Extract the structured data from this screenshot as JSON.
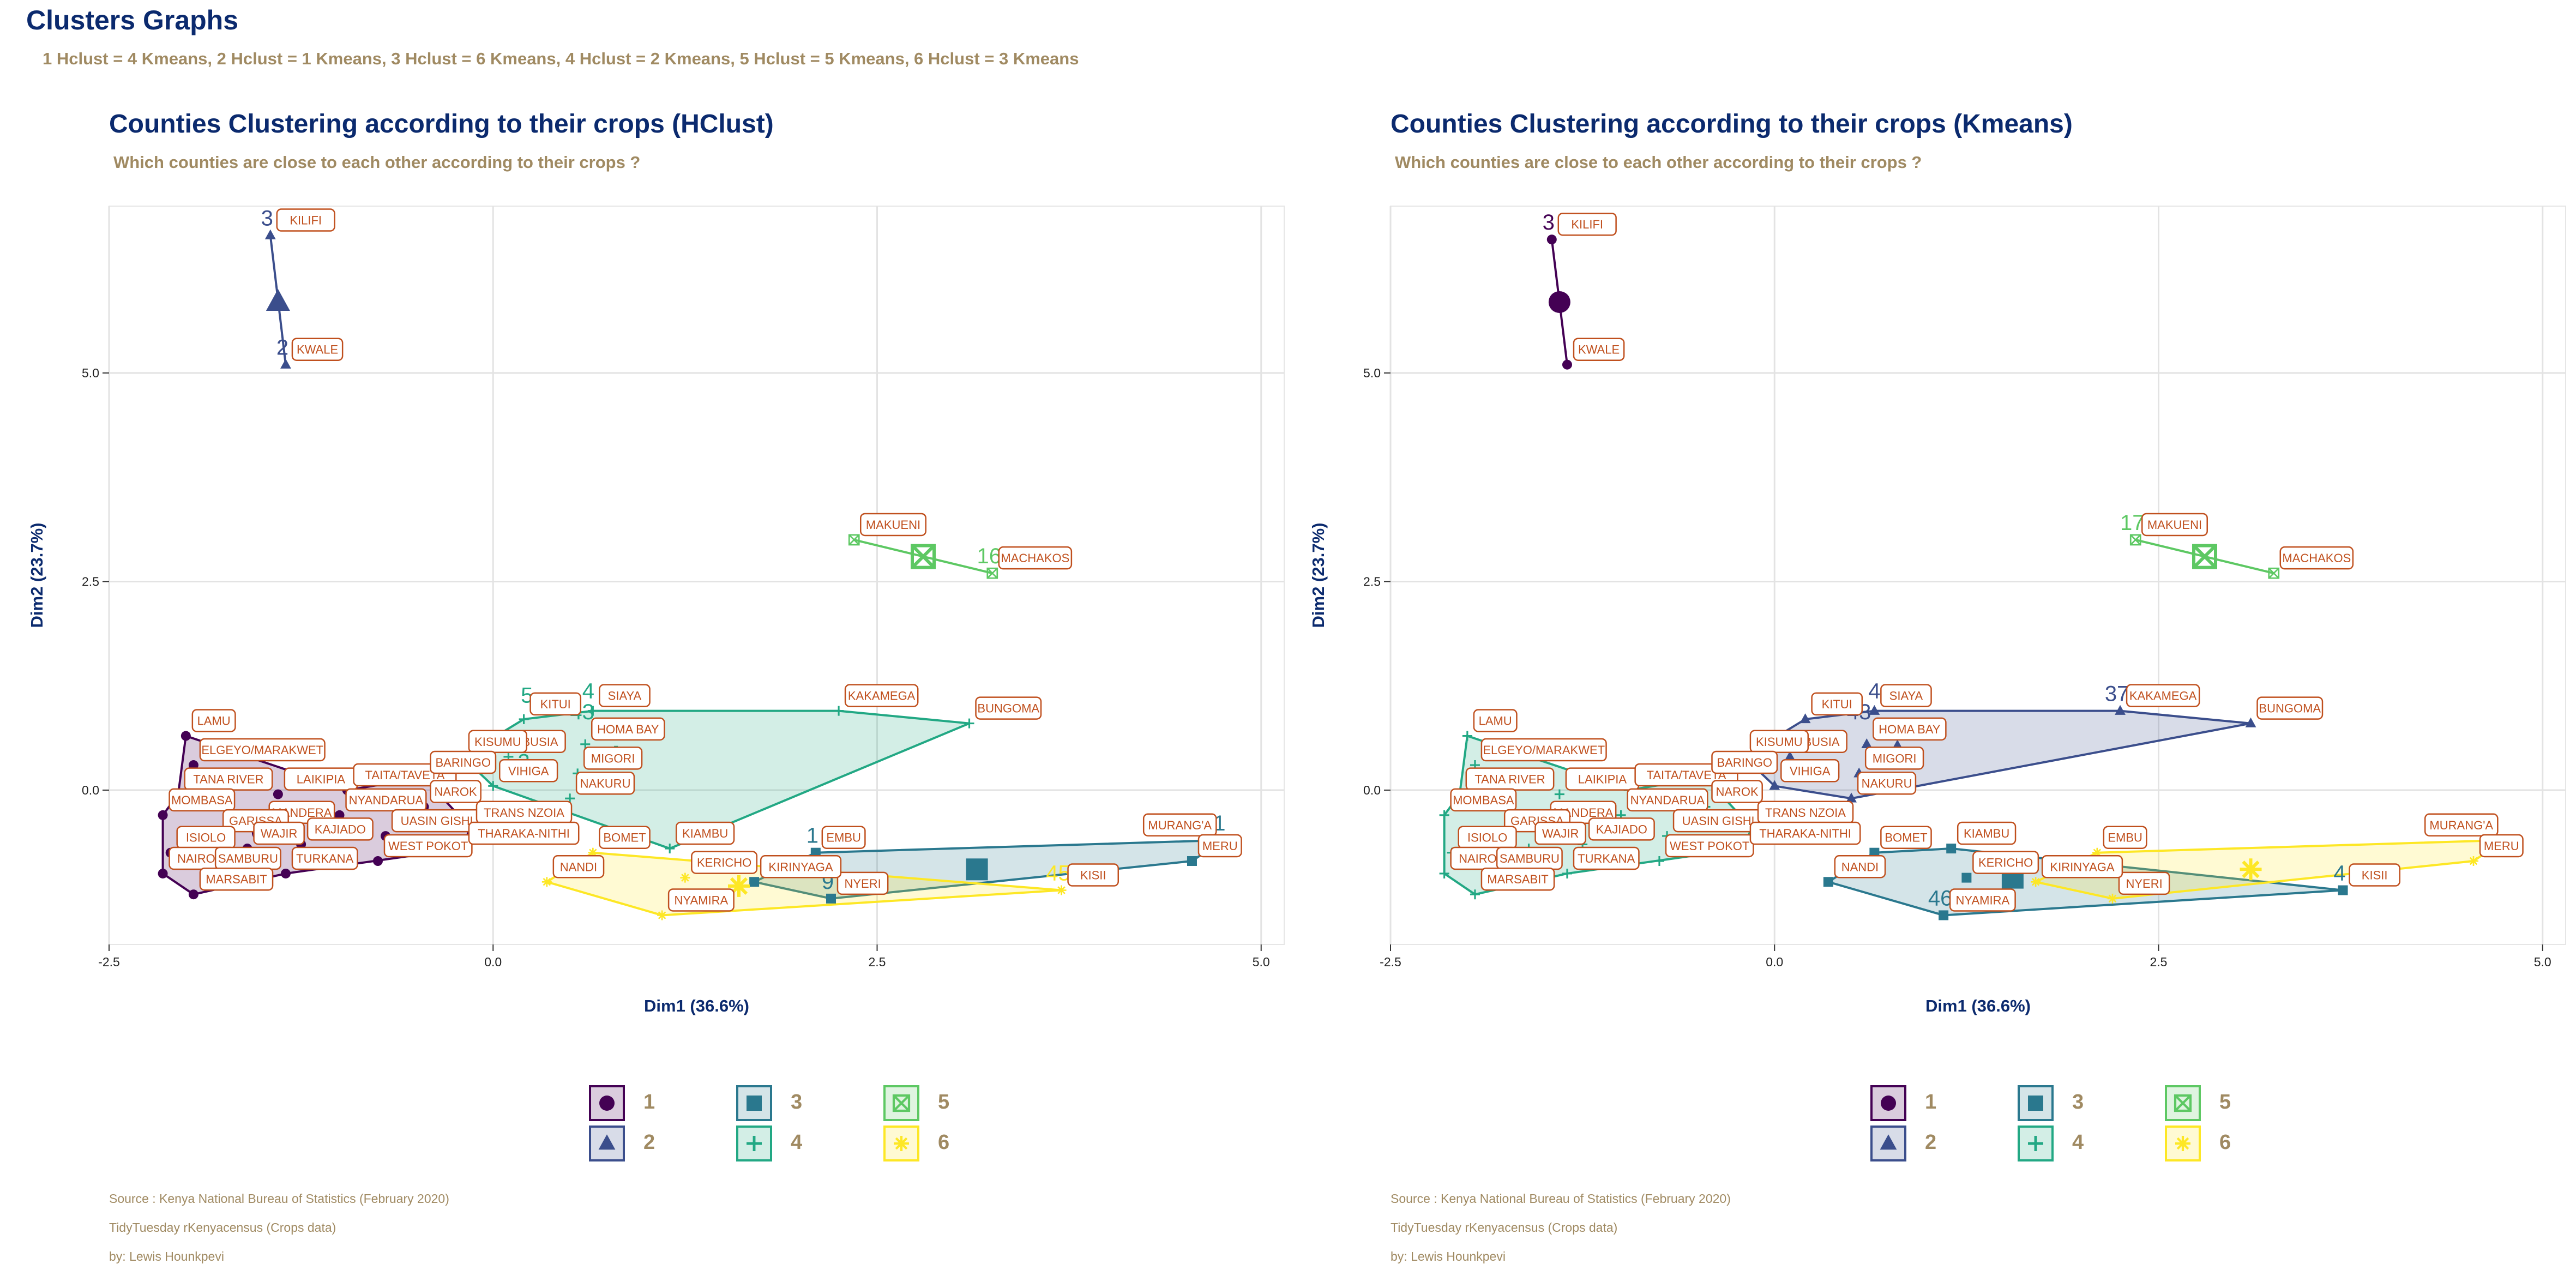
{
  "title": "Clusters Graphs",
  "subtitle": "1 Hclust = 4 Kmeans, 2 Hclust = 1 Kmeans, 3 Hclust = 6 Kmeans, 4 Hclust = 2 Kmeans, 5 Hclust = 5 Kmeans, 6 Hclust = 3 Kmeans",
  "cluster_colors": {
    "1": "#440154",
    "2": "#3b4e8c",
    "3": "#2a788e",
    "4": "#22a884",
    "5": "#5dc863",
    "6": "#fde725"
  },
  "cluster_shapes": {
    "1": "circle",
    "2": "triangle",
    "3": "square",
    "4": "plus",
    "5": "square-cross",
    "6": "asterisk"
  },
  "chart_data": [
    {
      "type": "scatter",
      "title": "Counties Clustering according to their crops (HClust)",
      "subtitle": "Which counties are close to each other according to their crops ?",
      "xlabel": "Dim1 (36.6%)",
      "ylabel": "Dim2 (23.7%)",
      "xlim": [
        -2.5,
        5.15
      ],
      "ylim": [
        -1.85,
        7.0
      ],
      "x_ticks": [
        "-2.5",
        "0.0",
        "2.5",
        "5.0"
      ],
      "y_ticks": [
        "0.0",
        "2.5",
        "5.0"
      ],
      "grid": true,
      "legend": {
        "position": "bottom",
        "labels": [
          "1",
          "2",
          "3",
          "4",
          "5",
          "6"
        ]
      },
      "points": [
        {
          "label": "KILIFI",
          "cluster": 2,
          "x": -1.45,
          "y": 6.65,
          "num": "3"
        },
        {
          "label": "KWALE",
          "cluster": 2,
          "x": -1.35,
          "y": 5.1,
          "num": "2"
        },
        {
          "label": "MAKUENI",
          "cluster": 5,
          "x": 2.35,
          "y": 3.0
        },
        {
          "label": "MACHAKOS",
          "cluster": 5,
          "x": 3.25,
          "y": 2.6,
          "num": "16"
        },
        {
          "label": "KAKAMEGA",
          "cluster": 4,
          "x": 2.25,
          "y": 0.95
        },
        {
          "label": "BUNGOMA",
          "cluster": 4,
          "x": 3.1,
          "y": 0.8
        },
        {
          "label": "SIAYA",
          "cluster": 4,
          "x": 0.65,
          "y": 0.95
        },
        {
          "label": "KITUI",
          "cluster": 4,
          "x": 0.2,
          "y": 0.85
        },
        {
          "label": "HOMA BAY",
          "cluster": 4,
          "x": 0.6,
          "y": 0.55
        },
        {
          "label": "BUSIA",
          "cluster": 4,
          "x": 0.1,
          "y": 0.4
        },
        {
          "label": "MIGORI",
          "cluster": 4,
          "x": 0.55,
          "y": 0.2
        },
        {
          "label": "VIHIGA",
          "cluster": 4,
          "x": 0.0,
          "y": 0.05
        },
        {
          "label": "NAKURU",
          "cluster": 4,
          "x": 0.5,
          "y": -0.1
        },
        {
          "label": "KIAMBU",
          "cluster": 4,
          "x": 1.15,
          "y": -0.7
        },
        {
          "label": "KISUMU",
          "cluster": 4,
          "x": -0.2,
          "y": 0.4
        },
        {
          "label": "LAMU",
          "cluster": 1,
          "x": -2.0,
          "y": 0.65
        },
        {
          "label": "ELGEYO/MARAKWET",
          "cluster": 1,
          "x": -1.95,
          "y": 0.3
        },
        {
          "label": "TANA RIVER",
          "cluster": 1,
          "x": -2.05,
          "y": -0.05
        },
        {
          "label": "MOMBASA",
          "cluster": 1,
          "x": -2.15,
          "y": -0.3
        },
        {
          "label": "LAIKIPIA",
          "cluster": 1,
          "x": -1.4,
          "y": -0.05
        },
        {
          "label": "TAITA/TAVETA",
          "cluster": 1,
          "x": -0.95,
          "y": 0.0
        },
        {
          "label": "MANDERA",
          "cluster": 1,
          "x": -1.5,
          "y": -0.45
        },
        {
          "label": "GARISSA",
          "cluster": 1,
          "x": -1.8,
          "y": -0.55
        },
        {
          "label": "NYANDARUA",
          "cluster": 1,
          "x": -1.0,
          "y": -0.3
        },
        {
          "label": "KAJIADO",
          "cluster": 1,
          "x": -1.25,
          "y": -0.65
        },
        {
          "label": "WAJIR",
          "cluster": 1,
          "x": -1.6,
          "y": -0.7
        },
        {
          "label": "ISIOLO",
          "cluster": 1,
          "x": -2.1,
          "y": -0.75
        },
        {
          "label": "NAIROBI",
          "cluster": 1,
          "x": -2.15,
          "y": -1.0
        },
        {
          "label": "SAMBURU",
          "cluster": 1,
          "x": -1.85,
          "y": -1.0
        },
        {
          "label": "TURKANA",
          "cluster": 1,
          "x": -1.35,
          "y": -1.0
        },
        {
          "label": "MARSABIT",
          "cluster": 1,
          "x": -1.95,
          "y": -1.25
        },
        {
          "label": "WEST POKOT",
          "cluster": 1,
          "x": -0.75,
          "y": -0.85
        },
        {
          "label": "UASIN GISHU",
          "cluster": 1,
          "x": -0.7,
          "y": -0.55
        },
        {
          "label": "BARINGO",
          "cluster": 1,
          "x": -0.45,
          "y": 0.15
        },
        {
          "label": "NAROK",
          "cluster": 1,
          "x": -0.45,
          "y": -0.2
        },
        {
          "label": "TRANS NZOIA",
          "cluster": 1,
          "x": -0.15,
          "y": -0.45
        },
        {
          "label": "THARAKA-NITHI",
          "cluster": 1,
          "x": -0.2,
          "y": -0.7
        },
        {
          "label": "EMBU",
          "cluster": 3,
          "x": 2.1,
          "y": -0.75,
          "num": "1"
        },
        {
          "label": "MURANG'A",
          "cluster": 3,
          "x": 4.75,
          "y": -0.6,
          "num": "1"
        },
        {
          "label": "MERU",
          "cluster": 3,
          "x": 4.55,
          "y": -0.85
        },
        {
          "label": "NYERI",
          "cluster": 3,
          "x": 2.2,
          "y": -1.3,
          "num": "9"
        },
        {
          "label": "KIRINYAGA",
          "cluster": 3,
          "x": 1.7,
          "y": -1.1
        },
        {
          "label": "BOMET",
          "cluster": 6,
          "x": 0.65,
          "y": -0.75
        },
        {
          "label": "KERICHO",
          "cluster": 6,
          "x": 1.25,
          "y": -1.05
        },
        {
          "label": "NANDI",
          "cluster": 6,
          "x": 0.35,
          "y": -1.1
        },
        {
          "label": "NYAMIRA",
          "cluster": 6,
          "x": 1.1,
          "y": -1.5
        },
        {
          "label": "KISII",
          "cluster": 6,
          "x": 3.7,
          "y": -1.2,
          "num": "45"
        }
      ],
      "centroids": [
        {
          "cluster": 1,
          "x": -1.5,
          "y": -0.5
        },
        {
          "cluster": 2,
          "x": -1.4,
          "y": 5.85
        },
        {
          "cluster": 3,
          "x": 3.15,
          "y": -0.95
        },
        {
          "cluster": 4,
          "x": 0.8,
          "y": 0.4
        },
        {
          "cluster": 5,
          "x": 2.8,
          "y": 2.8
        },
        {
          "cluster": 6,
          "x": 1.6,
          "y": -1.15
        }
      ],
      "hull_order": {
        "1": [
          "LAMU",
          "TAITA/TAVETA",
          "BARINGO",
          "TRANS NZOIA",
          "THARAKA-NITHI",
          "TURKANA",
          "MARSABIT",
          "NAIROBI",
          "MOMBASA",
          "TANA RIVER"
        ],
        "2": [
          "KILIFI",
          "KWALE"
        ],
        "3": [
          "EMBU",
          "MURANG'A",
          "MERU",
          "NYERI",
          "KIRINYAGA"
        ],
        "4": [
          "SIAYA",
          "KAKAMEGA",
          "BUNGOMA",
          "KIAMBU",
          "VIHIGA",
          "KISUMU",
          "KITUI"
        ],
        "5": [
          "MAKUENI",
          "MACHAKOS"
        ],
        "6": [
          "BOMET",
          "KISII",
          "NYAMIRA",
          "NANDI"
        ]
      },
      "annotations": [
        {
          "text": "5",
          "x": 0.22,
          "y": 1.05,
          "cluster": 4
        },
        {
          "text": "4",
          "x": 0.62,
          "y": 1.1,
          "cluster": 4
        },
        {
          "text": "43",
          "x": 0.58,
          "y": 0.85,
          "cluster": 4
        },
        {
          "text": "3",
          "x": 0.2,
          "y": 0.25,
          "cluster": 4
        }
      ]
    },
    {
      "type": "scatter",
      "title": "Counties Clustering according to their crops (Kmeans)",
      "subtitle": "Which counties are close to each other according to their crops ?",
      "xlabel": "Dim1 (36.6%)",
      "ylabel": "Dim2 (23.7%)",
      "xlim": [
        -2.5,
        5.15
      ],
      "ylim": [
        -1.85,
        7.0
      ],
      "x_ticks": [
        "-2.5",
        "0.0",
        "2.5",
        "5.0"
      ],
      "y_ticks": [
        "0.0",
        "2.5",
        "5.0"
      ],
      "grid": true,
      "legend": {
        "position": "bottom",
        "labels": [
          "1",
          "2",
          "3",
          "4",
          "5",
          "6"
        ]
      },
      "points": [
        {
          "label": "KILIFI",
          "cluster": 1,
          "x": -1.45,
          "y": 6.6,
          "num": "3"
        },
        {
          "label": "KWALE",
          "cluster": 1,
          "x": -1.35,
          "y": 5.1
        },
        {
          "label": "MAKUENI",
          "cluster": 5,
          "x": 2.35,
          "y": 3.0,
          "num": "17"
        },
        {
          "label": "MACHAKOS",
          "cluster": 5,
          "x": 3.25,
          "y": 2.6
        },
        {
          "label": "KAKAMEGA",
          "cluster": 2,
          "x": 2.25,
          "y": 0.95,
          "num": "37"
        },
        {
          "label": "BUNGOMA",
          "cluster": 2,
          "x": 3.1,
          "y": 0.8
        },
        {
          "label": "SIAYA",
          "cluster": 2,
          "x": 0.65,
          "y": 0.95
        },
        {
          "label": "KITUI",
          "cluster": 2,
          "x": 0.2,
          "y": 0.85
        },
        {
          "label": "HOMA BAY",
          "cluster": 2,
          "x": 0.6,
          "y": 0.55
        },
        {
          "label": "BUSIA",
          "cluster": 2,
          "x": 0.1,
          "y": 0.4
        },
        {
          "label": "MIGORI",
          "cluster": 2,
          "x": 0.55,
          "y": 0.2
        },
        {
          "label": "VIHIGA",
          "cluster": 2,
          "x": 0.0,
          "y": 0.05
        },
        {
          "label": "NAKURU",
          "cluster": 2,
          "x": 0.5,
          "y": -0.1
        },
        {
          "label": "KISUMU",
          "cluster": 2,
          "x": -0.2,
          "y": 0.4
        },
        {
          "label": "LAMU",
          "cluster": 4,
          "x": -2.0,
          "y": 0.65
        },
        {
          "label": "ELGEYO/MARAKWET",
          "cluster": 4,
          "x": -1.95,
          "y": 0.3
        },
        {
          "label": "TANA RIVER",
          "cluster": 4,
          "x": -2.05,
          "y": -0.05
        },
        {
          "label": "MOMBASA",
          "cluster": 4,
          "x": -2.15,
          "y": -0.3
        },
        {
          "label": "LAIKIPIA",
          "cluster": 4,
          "x": -1.4,
          "y": -0.05
        },
        {
          "label": "TAITA/TAVETA",
          "cluster": 4,
          "x": -0.95,
          "y": 0.0
        },
        {
          "label": "MANDERA",
          "cluster": 4,
          "x": -1.5,
          "y": -0.45
        },
        {
          "label": "GARISSA",
          "cluster": 4,
          "x": -1.8,
          "y": -0.55
        },
        {
          "label": "NYANDARUA",
          "cluster": 4,
          "x": -1.0,
          "y": -0.3
        },
        {
          "label": "KAJIADO",
          "cluster": 4,
          "x": -1.25,
          "y": -0.65
        },
        {
          "label": "WAJIR",
          "cluster": 4,
          "x": -1.6,
          "y": -0.7
        },
        {
          "label": "ISIOLO",
          "cluster": 4,
          "x": -2.1,
          "y": -0.75
        },
        {
          "label": "NAIROBI",
          "cluster": 4,
          "x": -2.15,
          "y": -1.0
        },
        {
          "label": "SAMBURU",
          "cluster": 4,
          "x": -1.85,
          "y": -1.0
        },
        {
          "label": "TURKANA",
          "cluster": 4,
          "x": -1.35,
          "y": -1.0
        },
        {
          "label": "MARSABIT",
          "cluster": 4,
          "x": -1.95,
          "y": -1.25
        },
        {
          "label": "WEST POKOT",
          "cluster": 4,
          "x": -0.75,
          "y": -0.85
        },
        {
          "label": "UASIN GISHU",
          "cluster": 4,
          "x": -0.7,
          "y": -0.55
        },
        {
          "label": "BARINGO",
          "cluster": 4,
          "x": -0.45,
          "y": 0.15
        },
        {
          "label": "NAROK",
          "cluster": 4,
          "x": -0.45,
          "y": -0.2
        },
        {
          "label": "TRANS NZOIA",
          "cluster": 4,
          "x": -0.15,
          "y": -0.45
        },
        {
          "label": "THARAKA-NITHI",
          "cluster": 4,
          "x": -0.2,
          "y": -0.7
        },
        {
          "label": "KIAMBU",
          "cluster": 3,
          "x": 1.15,
          "y": -0.7
        },
        {
          "label": "BOMET",
          "cluster": 3,
          "x": 0.65,
          "y": -0.75
        },
        {
          "label": "KERICHO",
          "cluster": 3,
          "x": 1.25,
          "y": -1.05
        },
        {
          "label": "NANDI",
          "cluster": 3,
          "x": 0.35,
          "y": -1.1
        },
        {
          "label": "NYAMIRA",
          "cluster": 3,
          "x": 1.1,
          "y": -1.5,
          "num": "46"
        },
        {
          "label": "KISII",
          "cluster": 3,
          "x": 3.7,
          "y": -1.2,
          "num": "4"
        },
        {
          "label": "EMBU",
          "cluster": 6,
          "x": 2.1,
          "y": -0.75
        },
        {
          "label": "MURANG'A",
          "cluster": 6,
          "x": 4.75,
          "y": -0.6
        },
        {
          "label": "MERU",
          "cluster": 6,
          "x": 4.55,
          "y": -0.85
        },
        {
          "label": "NYERI",
          "cluster": 6,
          "x": 2.2,
          "y": -1.3
        },
        {
          "label": "KIRINYAGA",
          "cluster": 6,
          "x": 1.7,
          "y": -1.1
        }
      ],
      "centroids": [
        {
          "cluster": 1,
          "x": -1.4,
          "y": 5.85
        },
        {
          "cluster": 2,
          "x": 0.8,
          "y": 0.45
        },
        {
          "cluster": 3,
          "x": 1.55,
          "y": -1.05
        },
        {
          "cluster": 4,
          "x": -1.3,
          "y": -0.35
        },
        {
          "cluster": 5,
          "x": 2.8,
          "y": 2.8
        },
        {
          "cluster": 6,
          "x": 3.1,
          "y": -0.95
        }
      ],
      "hull_order": {
        "1": [
          "KILIFI",
          "KWALE"
        ],
        "2": [
          "SIAYA",
          "KAKAMEGA",
          "BUNGOMA",
          "NAKURU",
          "VIHIGA",
          "KISUMU",
          "KITUI"
        ],
        "3": [
          "BOMET",
          "KIAMBU",
          "KISII",
          "NYAMIRA",
          "NANDI"
        ],
        "4": [
          "LAMU",
          "TAITA/TAVETA",
          "BARINGO",
          "TRANS NZOIA",
          "THARAKA-NITHI",
          "TURKANA",
          "MARSABIT",
          "NAIROBI",
          "MOMBASA",
          "TANA RIVER"
        ],
        "5": [
          "MAKUENI",
          "MACHAKOS"
        ],
        "6": [
          "EMBU",
          "MURANG'A",
          "MERU",
          "NYERI",
          "KIRINYAGA"
        ]
      },
      "annotations": [
        {
          "text": "5",
          "x": 0.45,
          "y": 0.95,
          "cluster": 2
        },
        {
          "text": "4",
          "x": 0.65,
          "y": 1.1,
          "cluster": 2
        },
        {
          "text": "43",
          "x": 0.55,
          "y": 0.85,
          "cluster": 2
        },
        {
          "text": "34",
          "x": -1.6,
          "y": -0.45,
          "cluster": 4
        }
      ]
    }
  ],
  "captions": [
    "Source : Kenya National Bureau of Statistics (February 2020)",
    "TidyTuesday rKenyacensus (Crops data)",
    "by: Lewis Hounkpevi"
  ]
}
